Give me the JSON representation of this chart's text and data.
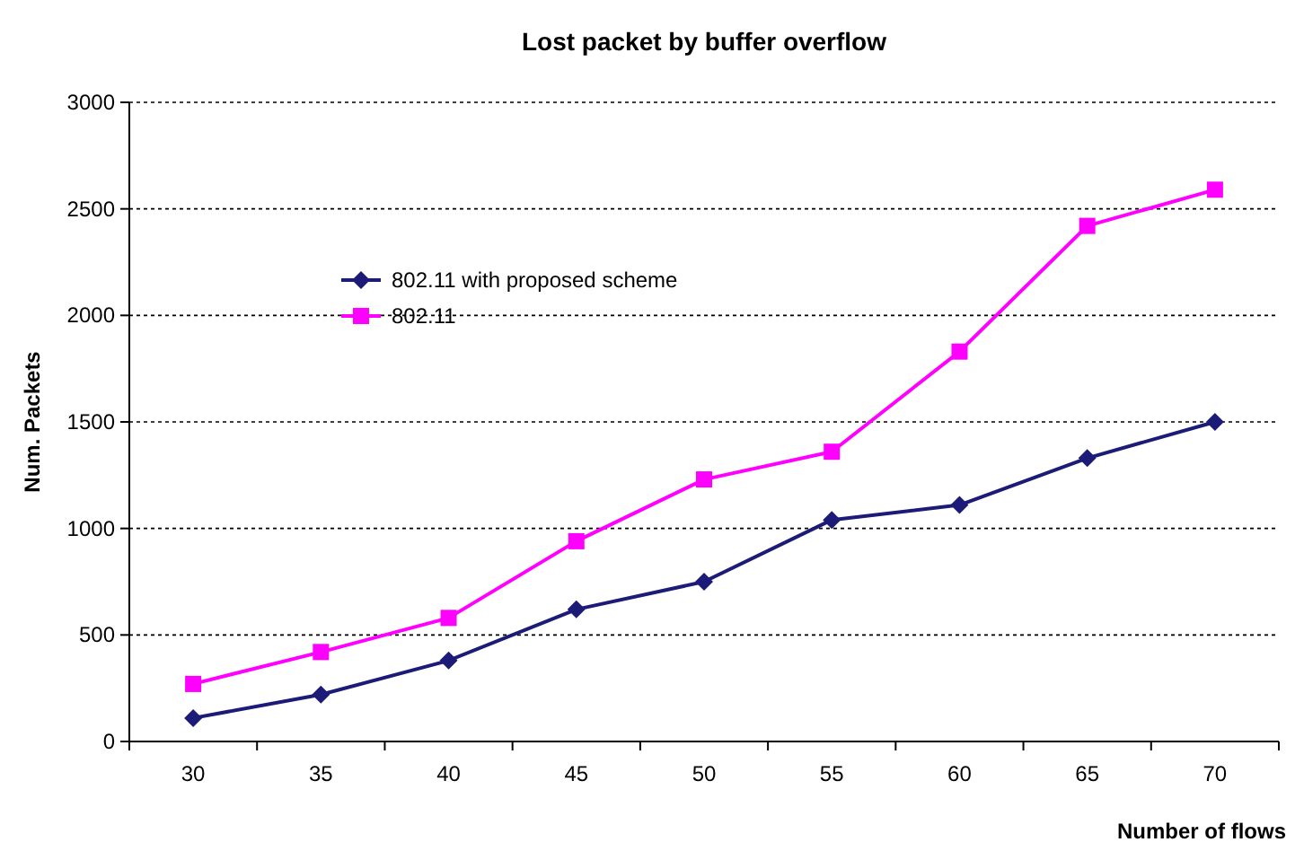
{
  "chart_data": {
    "type": "line",
    "title": "Lost packet by buffer overflow",
    "xlabel": "Number of flows",
    "ylabel": "Num. Packets",
    "categories": [
      "30",
      "35",
      "40",
      "45",
      "50",
      "55",
      "60",
      "65",
      "70"
    ],
    "series": [
      {
        "name": "802.11 with proposed scheme",
        "color": "#1c1c78",
        "marker": "diamond",
        "values": [
          110,
          220,
          380,
          620,
          750,
          1040,
          1110,
          1330,
          1500
        ]
      },
      {
        "name": "802.11",
        "color": "#ff00ff",
        "marker": "square",
        "values": [
          270,
          420,
          580,
          940,
          1230,
          1360,
          1830,
          2420,
          2590
        ]
      }
    ],
    "ylim": [
      0,
      3000
    ],
    "yticks": [
      0,
      500,
      1000,
      1500,
      2000,
      2500,
      3000
    ],
    "grid": "y",
    "legend": "top left",
    "line_style": "solid"
  }
}
